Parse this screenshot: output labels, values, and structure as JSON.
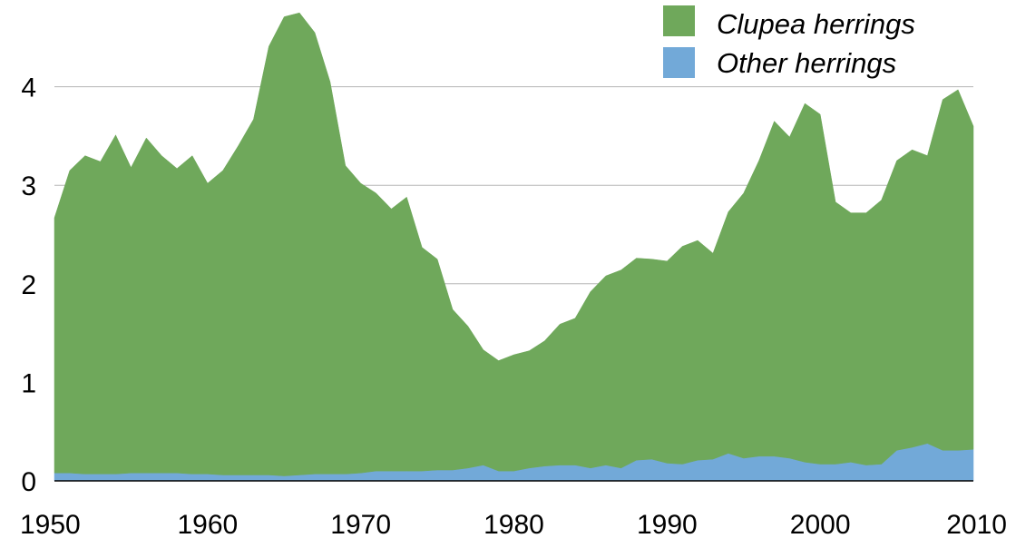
{
  "chart_data": {
    "type": "area",
    "stacked": true,
    "title": "",
    "xlabel": "",
    "ylabel": "",
    "xlim": [
      1950,
      2010
    ],
    "ylim": [
      0,
      4.9
    ],
    "xticks": [
      "1950",
      "1960",
      "1970",
      "1980",
      "1990",
      "2000",
      "2010"
    ],
    "yticks": [
      "0",
      "1",
      "2",
      "3",
      "4"
    ],
    "grid": "horizontal",
    "legend_position": "top-right",
    "x": [
      1950,
      1951,
      1952,
      1953,
      1954,
      1955,
      1956,
      1957,
      1958,
      1959,
      1960,
      1961,
      1962,
      1963,
      1964,
      1965,
      1966,
      1967,
      1968,
      1969,
      1970,
      1971,
      1972,
      1973,
      1974,
      1975,
      1976,
      1977,
      1978,
      1979,
      1980,
      1981,
      1982,
      1983,
      1984,
      1985,
      1986,
      1987,
      1988,
      1989,
      1990,
      1991,
      1992,
      1993,
      1994,
      1995,
      1996,
      1997,
      1998,
      1999,
      2000,
      2001,
      2002,
      2003,
      2004,
      2005,
      2006,
      2007,
      2008,
      2009,
      2010
    ],
    "series": [
      {
        "name": "Other herrings",
        "color": "#72a9d8",
        "values": [
          0.08,
          0.08,
          0.07,
          0.07,
          0.07,
          0.08,
          0.08,
          0.08,
          0.08,
          0.07,
          0.07,
          0.06,
          0.06,
          0.06,
          0.06,
          0.05,
          0.06,
          0.07,
          0.07,
          0.07,
          0.08,
          0.1,
          0.1,
          0.1,
          0.1,
          0.11,
          0.11,
          0.13,
          0.16,
          0.1,
          0.1,
          0.13,
          0.15,
          0.16,
          0.16,
          0.13,
          0.16,
          0.13,
          0.21,
          0.22,
          0.18,
          0.17,
          0.21,
          0.22,
          0.28,
          0.23,
          0.25,
          0.25,
          0.23,
          0.19,
          0.17,
          0.17,
          0.19,
          0.16,
          0.17,
          0.31,
          0.34,
          0.38,
          0.31,
          0.31,
          0.32
        ]
      },
      {
        "name": "Clupea herrings",
        "color": "#6fa85b",
        "values": [
          2.59,
          3.07,
          3.23,
          3.17,
          3.44,
          3.1,
          3.4,
          3.22,
          3.09,
          3.23,
          2.95,
          3.09,
          3.34,
          3.61,
          4.35,
          4.66,
          4.69,
          4.48,
          3.98,
          3.13,
          2.94,
          2.82,
          2.66,
          2.78,
          2.27,
          2.14,
          1.63,
          1.44,
          1.17,
          1.12,
          1.18,
          1.19,
          1.27,
          1.43,
          1.49,
          1.79,
          1.92,
          2.01,
          2.05,
          2.03,
          2.05,
          2.21,
          2.23,
          2.09,
          2.45,
          2.69,
          3.0,
          3.4,
          3.26,
          3.64,
          3.55,
          2.66,
          2.53,
          2.56,
          2.68,
          2.94,
          3.02,
          2.92,
          3.56,
          3.66,
          3.28
        ]
      }
    ]
  },
  "legend": {
    "items": [
      {
        "label": "Clupea herrings",
        "color": "#6fa85b"
      },
      {
        "label": "Other herrings",
        "color": "#72a9d8"
      }
    ]
  }
}
